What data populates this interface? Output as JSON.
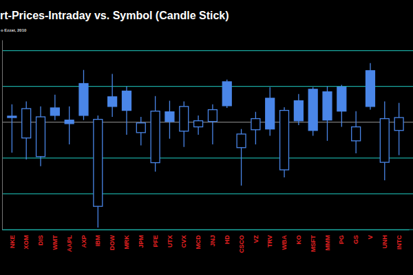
{
  "chart_data": {
    "type": "candlestick",
    "title": "rt-Prices-Intraday vs. Symbol (Candle Stick)",
    "subtitle": "o Ezzat, 2010",
    "categories": [
      "NKE",
      "XOM",
      "DIS",
      "WMT",
      "AAPL",
      "AXP",
      "IBM",
      "DOW",
      "MRK",
      "JPM",
      "PFE",
      "UTX",
      "CVX",
      "MCD",
      "JNJ",
      "HD",
      "CSCO",
      "VZ",
      "TRV",
      "WBA",
      "KO",
      "MSFT",
      "MMM",
      "PG",
      "GS",
      "V",
      "UNH",
      "INTC"
    ],
    "open": [
      3.13,
      3.38,
      3.15,
      3.19,
      2.96,
      3.19,
      3.08,
      3.44,
      3.33,
      2.98,
      3.31,
      3.02,
      3.44,
      3.04,
      3.35,
      3.46,
      2.67,
      3.1,
      2.81,
      3.33,
      3.04,
      2.77,
      3.06,
      3.31,
      2.87,
      3.44,
      3.1,
      3.13
    ],
    "high": [
      3.5,
      3.58,
      3.44,
      3.77,
      3.44,
      4.46,
      3.19,
      4.35,
      4.0,
      3.15,
      3.73,
      3.6,
      3.58,
      3.19,
      3.5,
      4.19,
      2.81,
      3.29,
      3.98,
      3.42,
      3.79,
      3.98,
      4.0,
      4.04,
      3.31,
      4.65,
      3.58,
      3.54
    ],
    "low": [
      2.15,
      1.96,
      1.77,
      3.06,
      2.38,
      3.06,
      0.06,
      3.15,
      2.65,
      2.35,
      1.62,
      2.54,
      2.31,
      2.65,
      2.38,
      3.4,
      1.23,
      2.38,
      2.62,
      1.46,
      2.92,
      2.62,
      2.48,
      2.87,
      2.13,
      3.35,
      1.38,
      2.08
    ],
    "close": [
      3.17,
      2.56,
      2.04,
      3.4,
      3.06,
      4.08,
      0.65,
      3.71,
      3.87,
      2.71,
      1.87,
      3.29,
      2.75,
      2.87,
      3.02,
      4.13,
      2.29,
      2.79,
      3.67,
      1.67,
      3.6,
      3.92,
      3.85,
      3.98,
      2.48,
      4.44,
      1.88,
      2.77
    ],
    "color": "#4a86e8",
    "ylim": [
      0,
      5.3
    ],
    "yticks": [
      0,
      1,
      2,
      3,
      4,
      5
    ],
    "grid": true,
    "tick_labels": "x"
  }
}
